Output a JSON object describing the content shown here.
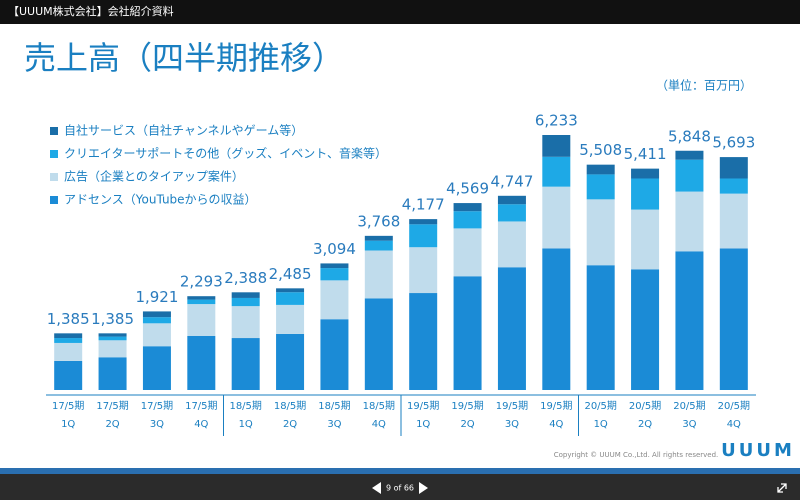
{
  "header": {
    "document_title": "【UUUM株式会社】会社紹介資料"
  },
  "slide": {
    "unit": "（単位：百万円）",
    "copyright": "Copyright © UUUM Co.,Ltd. All rights reserved.",
    "logo": "UUUM"
  },
  "viewer": {
    "page_indicator": "9 of 66"
  },
  "chart_data": {
    "type": "stacked_bar",
    "title": "売上高（四半期推移）",
    "categories": [
      [
        "17/5期",
        "1Q"
      ],
      [
        "17/5期",
        "2Q"
      ],
      [
        "17/5期",
        "3Q"
      ],
      [
        "17/5期",
        "4Q"
      ],
      [
        "18/5期",
        "1Q"
      ],
      [
        "18/5期",
        "2Q"
      ],
      [
        "18/5期",
        "3Q"
      ],
      [
        "18/5期",
        "4Q"
      ],
      [
        "19/5期",
        "1Q"
      ],
      [
        "19/5期",
        "2Q"
      ],
      [
        "19/5期",
        "3Q"
      ],
      [
        "19/5期",
        "4Q"
      ],
      [
        "20/5期",
        "1Q"
      ],
      [
        "20/5期",
        "2Q"
      ],
      [
        "20/5期",
        "3Q"
      ],
      [
        "20/5期",
        "4Q"
      ]
    ],
    "series": [
      {
        "name": "自社サービス（自社チャンネルやゲーム等）",
        "color": "#1a6ea8",
        "values": [
          115,
          80,
          141,
          83,
          138,
          95,
          114,
          118,
          127,
          199,
          207,
          533,
          238,
          241,
          218,
          523
        ]
      },
      {
        "name": "クリエイターサポートその他（グッズ、イベント、音楽等）",
        "color": "#1ea9e6",
        "values": [
          120,
          90,
          150,
          110,
          200,
          310,
          300,
          240,
          560,
          420,
          420,
          730,
          610,
          760,
          780,
          370
        ]
      },
      {
        "name": "広告（企業とのタイアップ案件）",
        "color": "#c0dcec",
        "values": [
          440,
          415,
          560,
          780,
          780,
          710,
          950,
          1170,
          1120,
          1170,
          1120,
          1510,
          1610,
          1460,
          1460,
          1340
        ]
      },
      {
        "name": "アドセンス（YouTubeからの収益）",
        "color": "#1b8bd6",
        "values": [
          710,
          800,
          1070,
          1320,
          1270,
          1370,
          1730,
          2240,
          2370,
          2780,
          3000,
          3460,
          3050,
          2950,
          3390,
          3460
        ]
      }
    ],
    "totals": [
      1385,
      1385,
      1921,
      2293,
      2388,
      2485,
      3094,
      3768,
      4177,
      4569,
      4747,
      6233,
      5508,
      5411,
      5848,
      5693
    ],
    "total_labels": [
      "1,385",
      "1,385",
      "1,921",
      "2,293",
      "2,388",
      "2,485",
      "3,094",
      "3,768",
      "4,177",
      "4,569",
      "4,747",
      "6,233",
      "5,508",
      "5,411",
      "5,848",
      "5,693"
    ]
  }
}
